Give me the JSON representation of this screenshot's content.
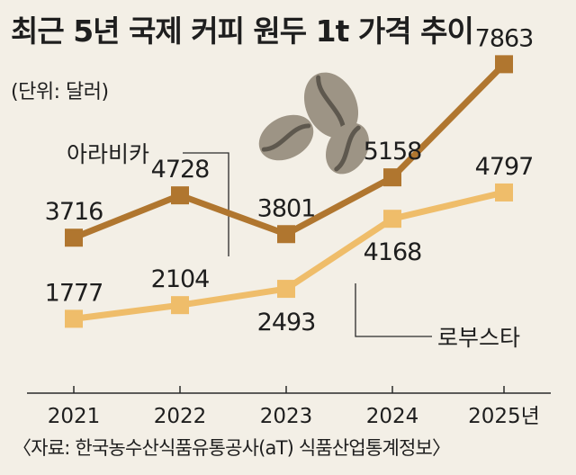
{
  "title": "최근 5년 국제 커피 원두 1t 가격 추이",
  "unit_note": "(단위: 달러)",
  "source": "〈자료: 한국농수산식품유통공사(aT) 식품산업통계정보〉",
  "chart_data": {
    "type": "line",
    "title": "최근 5년 국제 커피 원두 1t 가격 추이",
    "ylabel": "(단위: 달러)",
    "categories": [
      "2021",
      "2022",
      "2023",
      "2024",
      "2025년"
    ],
    "ylim": [
      0,
      9000
    ],
    "grid": false,
    "series": [
      {
        "name": "아라비카",
        "values": [
          3716,
          4728,
          3801,
          5158,
          7863
        ],
        "color": "#b0762f"
      },
      {
        "name": "로부스타",
        "values": [
          1777,
          2104,
          2493,
          4168,
          4797
        ],
        "color": "#efbd6a"
      }
    ]
  }
}
